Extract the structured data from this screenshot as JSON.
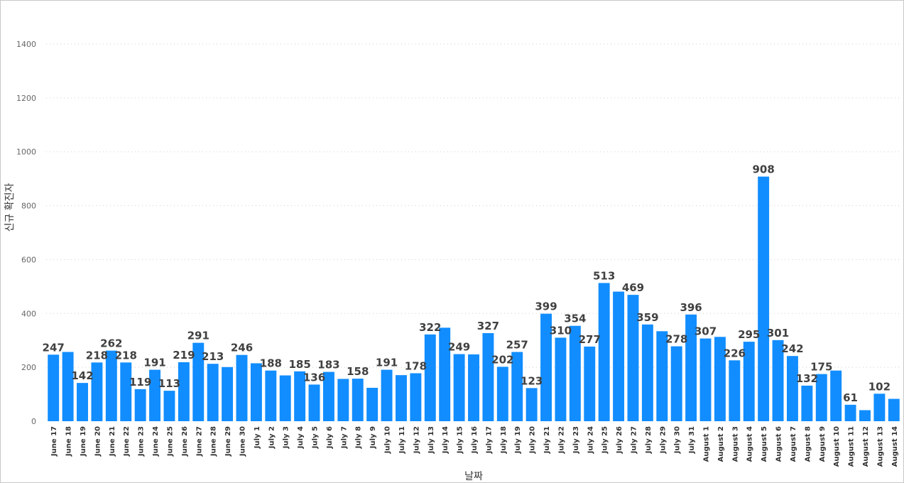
{
  "chart_data": {
    "type": "bar",
    "xlabel": "날짜",
    "ylabel": "신규 확진자",
    "ylim": [
      0,
      1400
    ],
    "yticks": [
      0,
      200,
      400,
      600,
      800,
      1000,
      1200,
      1400
    ],
    "grid": true,
    "bar_color": "#118DFF",
    "categories": [
      "June 17",
      "June 18",
      "June 19",
      "June 20",
      "June 21",
      "June 22",
      "June 23",
      "June 24",
      "June 25",
      "June 26",
      "June 27",
      "June 28",
      "June 29",
      "June 30",
      "July 1",
      "July 2",
      "July 3",
      "July 4",
      "July 5",
      "July 6",
      "July 7",
      "July 8",
      "July 9",
      "July 10",
      "July 11",
      "July 12",
      "July 13",
      "July 14",
      "July 15",
      "July 16",
      "July 17",
      "July 18",
      "July 19",
      "July 20",
      "July 21",
      "July 22",
      "July 23",
      "July 24",
      "July 25",
      "July 26",
      "July 27",
      "July 28",
      "July 29",
      "July 30",
      "July 31",
      "August 1",
      "August 2",
      "August 3",
      "August 4",
      "August 5",
      "August 6",
      "August 7",
      "August 8",
      "August 9",
      "August 10",
      "August 11",
      "August 12",
      "August 13",
      "August 14"
    ],
    "values": [
      247,
      257,
      142,
      218,
      262,
      218,
      119,
      191,
      113,
      219,
      291,
      213,
      201,
      246,
      215,
      188,
      170,
      185,
      136,
      183,
      157,
      158,
      124,
      191,
      171,
      178,
      322,
      347,
      249,
      248,
      327,
      202,
      257,
      123,
      399,
      310,
      354,
      277,
      513,
      481,
      469,
      359,
      334,
      278,
      396,
      307,
      313,
      226,
      295,
      908,
      301,
      242,
      132,
      175,
      188,
      61,
      41,
      102,
      83
    ],
    "data_labels": [
      "247",
      "",
      "142",
      "218",
      "262",
      "218",
      "119",
      "191",
      "113",
      "219",
      "291",
      "213",
      "",
      "246",
      "",
      "188",
      "",
      "185",
      "136",
      "183",
      "",
      "158",
      "",
      "191",
      "",
      "178",
      "322",
      "",
      "249",
      "",
      "327",
      "202",
      "257",
      "123",
      "399",
      "310",
      "354",
      "277",
      "513",
      "",
      "469",
      "359",
      "",
      "278",
      "396",
      "307",
      "",
      "226",
      "295",
      "908",
      "301",
      "242",
      "132",
      "175",
      "",
      "61",
      "",
      "102",
      ""
    ]
  }
}
